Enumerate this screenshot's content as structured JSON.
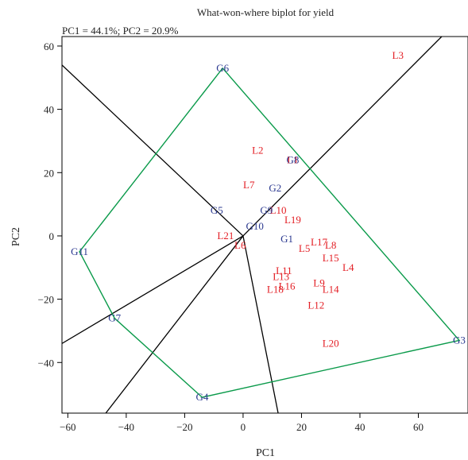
{
  "chart_data": {
    "type": "scatter",
    "title": "What-won-where biplot for yield",
    "subtitle": "PC1 = 44.1%; PC2 = 20.9%",
    "xlabel": "PC1",
    "ylabel": "PC2",
    "xlim": [
      -62,
      77
    ],
    "ylim": [
      -56,
      63
    ],
    "xticks": [
      -60,
      -40,
      -20,
      0,
      20,
      40,
      60
    ],
    "yticks": [
      -40,
      -20,
      0,
      20,
      40,
      60
    ],
    "grid": false,
    "colors": {
      "genotype": "#2b3990",
      "environment": "#e31e24",
      "hull": "#0a9a4a",
      "sector": "#000000"
    },
    "genotypes": [
      {
        "label": "G1",
        "x": 15,
        "y": -1
      },
      {
        "label": "G2",
        "x": 11,
        "y": 15
      },
      {
        "label": "G3",
        "x": 74,
        "y": -33
      },
      {
        "label": "G4",
        "x": -14,
        "y": -51
      },
      {
        "label": "G5",
        "x": -9,
        "y": 8
      },
      {
        "label": "G6",
        "x": -7,
        "y": 53
      },
      {
        "label": "G7",
        "x": -44,
        "y": -26
      },
      {
        "label": "G8",
        "x": 17,
        "y": 24
      },
      {
        "label": "G9",
        "x": 8,
        "y": 8
      },
      {
        "label": "G10",
        "x": 4,
        "y": 3
      },
      {
        "label": "G11",
        "x": -56,
        "y": -5
      }
    ],
    "environments": [
      {
        "label": "L1",
        "x": 17,
        "y": 24
      },
      {
        "label": "L2",
        "x": 5,
        "y": 27
      },
      {
        "label": "L3",
        "x": 53,
        "y": 57
      },
      {
        "label": "L4",
        "x": 36,
        "y": -10
      },
      {
        "label": "L5",
        "x": 21,
        "y": -4
      },
      {
        "label": "L6",
        "x": -1,
        "y": -3
      },
      {
        "label": "L7",
        "x": 2,
        "y": 16
      },
      {
        "label": "L8",
        "x": 30,
        "y": -3
      },
      {
        "label": "L9",
        "x": 26,
        "y": -15
      },
      {
        "label": "L10",
        "x": 12,
        "y": 8
      },
      {
        "label": "L11",
        "x": 14,
        "y": -11
      },
      {
        "label": "L12",
        "x": 25,
        "y": -22
      },
      {
        "label": "L13",
        "x": 13,
        "y": -13
      },
      {
        "label": "L14",
        "x": 30,
        "y": -17
      },
      {
        "label": "L15",
        "x": 30,
        "y": -7
      },
      {
        "label": "L16",
        "x": 15,
        "y": -16
      },
      {
        "label": "L17",
        "x": 26,
        "y": -2
      },
      {
        "label": "L18",
        "x": 11,
        "y": -17
      },
      {
        "label": "L19",
        "x": 17,
        "y": 5
      },
      {
        "label": "L20",
        "x": 30,
        "y": -34
      },
      {
        "label": "L21",
        "x": -6,
        "y": 0
      }
    ],
    "hull": [
      "G6",
      "G3",
      "G4",
      "G7",
      "G11"
    ],
    "sector_lines": [
      {
        "x": -62,
        "y": 54
      },
      {
        "x": 68,
        "y": 63
      },
      {
        "x": 12,
        "y": -56
      },
      {
        "x": -47,
        "y": -56
      },
      {
        "x": -62,
        "y": -34
      }
    ]
  }
}
